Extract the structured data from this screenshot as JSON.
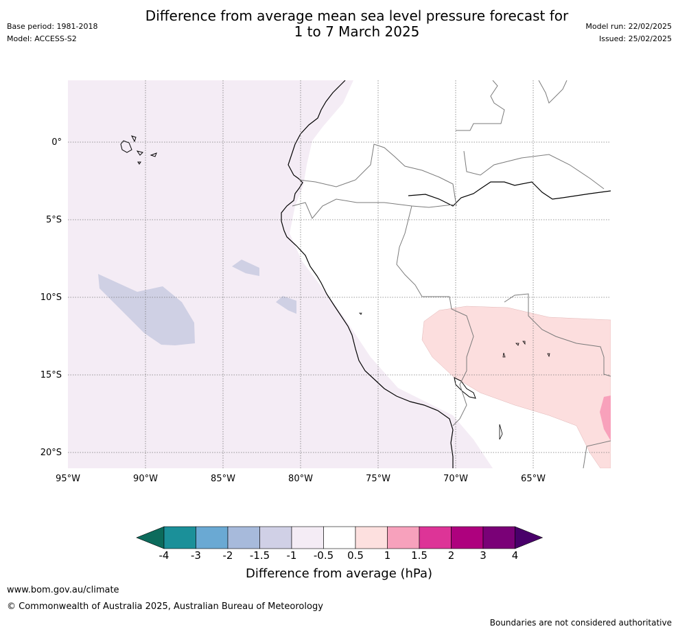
{
  "header": {
    "base_period": "Base period: 1981-2018",
    "model": "Model: ACCESS-S2",
    "title_line1": "Difference from average mean sea level pressure forecast for",
    "title_line2": "1 to 7 March 2025",
    "model_run": "Model run: 22/02/2025",
    "issued": "Issued: 25/02/2025"
  },
  "map": {
    "lat_labels": [
      "0°",
      "5°S",
      "10°S",
      "15°S",
      "20°S"
    ],
    "lon_labels": [
      "95°W",
      "90°W",
      "85°W",
      "80°W",
      "75°W",
      "70°W",
      "65°W"
    ],
    "colors": {
      "ocean_light_purple": "#f4ecf5",
      "low_purple": "#cfd0e4",
      "pale_pink": "#fcdede",
      "pink": "#f8a1bb",
      "border": "#7a7a7a",
      "coast": "#000000"
    }
  },
  "colorbar": {
    "colors": [
      "#0c6b5c",
      "#1b9099",
      "#6aa9d3",
      "#a7badb",
      "#d0d0e6",
      "#f4ecf5",
      "#ffffff",
      "#fde0df",
      "#f7a1bc",
      "#dd3497",
      "#ae017e",
      "#7a0177",
      "#49006a"
    ],
    "ticks": [
      "-4",
      "-3",
      "-2",
      "-1.5",
      "-1",
      "-0.5",
      "0.5",
      "1",
      "1.5",
      "2",
      "3",
      "4"
    ],
    "label": "Difference from average (hPa)"
  },
  "footer": {
    "url": "www.bom.gov.au/climate",
    "copyright": "© Commonwealth of Australia 2025, Australian Bureau of Meteorology",
    "disclaimer": "Boundaries are not considered authoritative"
  }
}
